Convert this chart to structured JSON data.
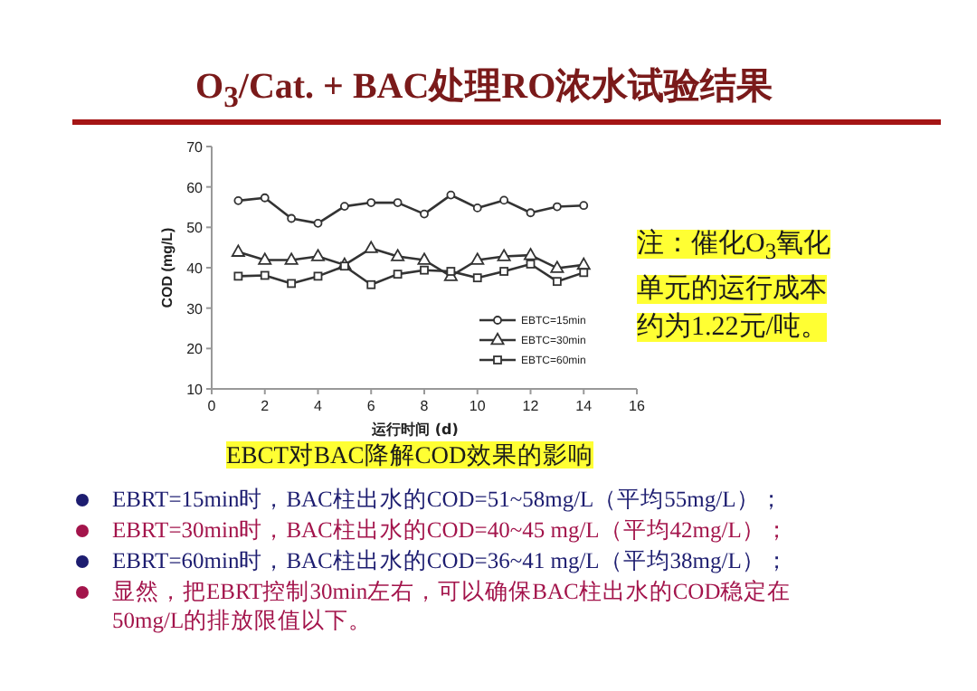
{
  "chart_data": {
    "type": "line",
    "title": "O$_{3}$/Cat. + BAC处理RO浓水试验结果",
    "xlabel": "运行时间 (d)",
    "ylabel": "COD (mg/L)",
    "x": [
      1,
      2,
      3,
      4,
      5,
      6,
      7,
      8,
      9,
      10,
      11,
      12,
      13,
      14
    ],
    "series": [
      {
        "name": "EBTC=15min",
        "color": "#333333",
        "marker": "circle",
        "values": [
          56.6,
          57.3,
          52.2,
          51,
          55.2,
          56.1,
          56.1,
          53.3,
          58,
          54.8,
          56.7,
          53.6,
          55.1,
          55.4
        ]
      },
      {
        "name": "EBTC=30min",
        "color": "#333333",
        "marker": "triangle",
        "values": [
          43.9,
          41.9,
          41.9,
          42.8,
          40.7,
          44.8,
          42.8,
          41.9,
          37.9,
          41.9,
          42.8,
          43.1,
          39.9,
          40.7
        ]
      },
      {
        "name": "EBTC=60min",
        "color": "#333333",
        "marker": "square",
        "values": [
          37.9,
          38.1,
          36.1,
          37.9,
          40.4,
          35.8,
          38.4,
          39.4,
          39.1,
          37.5,
          39.1,
          40.9,
          36.6,
          38.8
        ]
      }
    ],
    "xlim": [
      0,
      16
    ],
    "xticks": [
      0,
      2,
      4,
      6,
      8,
      10,
      12,
      14,
      16
    ],
    "ylim": [
      10,
      70
    ],
    "yticks": [
      10,
      20,
      30,
      40,
      50,
      60,
      70
    ],
    "legend": "bottom right",
    "annotations": [
      "注：催化O$_{3}$氧化单元的运行成本约为1.22元/吨。",
      "EBCT对BAC降解COD效果的影响",
      "EBRT=15min时，BAC柱出水的COD=51~58mg/L（平均55mg/L）；",
      "EBRT=30min时，BAC柱出水的COD=40~45 mg/L（平均42mg/L）；",
      "EBRT=60min时，BAC柱出水的COD=36~41 mg/L（平均38mg/L）；",
      "显然，把EBRT控制30min左右，可以确保BAC柱出水的COD稳定在50mg/L的排放限值以下。"
    ]
  }
}
